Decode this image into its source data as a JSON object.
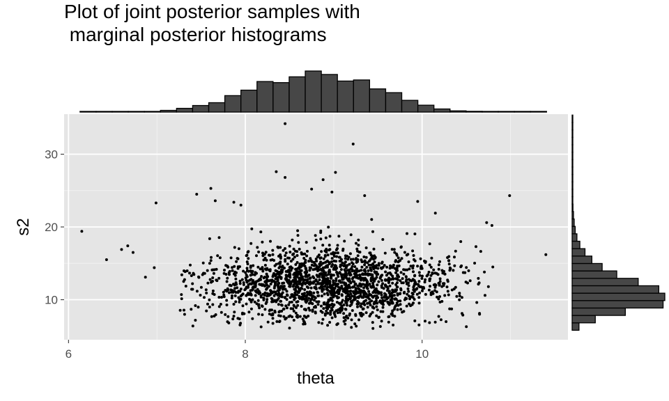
{
  "title": "Plot of joint posterior samples with\n marginal posterior histograms",
  "chart_data": {
    "type": "scatter",
    "title": "Plot of joint posterior samples with\n marginal posterior histograms",
    "xlabel": "theta",
    "ylabel": "s2",
    "xlim": [
      5.95,
      11.65
    ],
    "ylim": [
      4.5,
      35.5
    ],
    "x_ticks": [
      {
        "value": 6,
        "label": "6"
      },
      {
        "value": 8,
        "label": "8"
      },
      {
        "value": 10,
        "label": "10"
      }
    ],
    "y_ticks": [
      {
        "value": 10,
        "label": "10"
      },
      {
        "value": 20,
        "label": "20"
      },
      {
        "value": 30,
        "label": "30"
      }
    ],
    "x_minor_ticks": [
      7,
      9,
      11
    ],
    "y_minor_ticks": [
      15,
      25
    ],
    "grid": true,
    "panel_background": "#e5e5e5",
    "point_color": "#000000",
    "bar_fill": "#474747",
    "bar_outline": "#000000",
    "marginal_theta_histogram": {
      "bin_start": 6.13,
      "bin_width": 0.182,
      "counts": [
        1,
        1,
        1,
        2,
        4,
        11,
        24,
        42,
        60,
        105,
        140,
        195,
        188,
        225,
        262,
        240,
        198,
        205,
        148,
        124,
        75,
        44,
        20,
        8,
        5,
        2,
        1,
        1,
        1
      ]
    },
    "marginal_s2_histogram": {
      "bin_start": 5.8,
      "bin_width": 1.02,
      "counts": [
        40,
        135,
        310,
        530,
        540,
        505,
        385,
        260,
        175,
        115,
        75,
        45,
        28,
        18,
        12,
        8,
        5,
        3,
        2,
        2,
        1,
        1,
        1,
        1,
        1,
        1,
        1,
        1,
        1
      ]
    },
    "notable_points": [
      {
        "x": 6.15,
        "y": 19.4
      },
      {
        "x": 6.43,
        "y": 15.5
      },
      {
        "x": 6.6,
        "y": 16.9
      },
      {
        "x": 6.67,
        "y": 17.4
      },
      {
        "x": 6.73,
        "y": 16.5
      },
      {
        "x": 6.87,
        "y": 13.1
      },
      {
        "x": 6.97,
        "y": 14.4
      },
      {
        "x": 6.99,
        "y": 23.3
      },
      {
        "x": 7.45,
        "y": 24.5
      },
      {
        "x": 7.61,
        "y": 25.3
      },
      {
        "x": 7.66,
        "y": 23.6
      },
      {
        "x": 7.87,
        "y": 23.4
      },
      {
        "x": 7.95,
        "y": 23.0
      },
      {
        "x": 8.35,
        "y": 27.6
      },
      {
        "x": 8.45,
        "y": 26.8
      },
      {
        "x": 8.45,
        "y": 34.2
      },
      {
        "x": 8.75,
        "y": 25.2
      },
      {
        "x": 8.88,
        "y": 26.5
      },
      {
        "x": 8.98,
        "y": 24.8
      },
      {
        "x": 9.02,
        "y": 27.5
      },
      {
        "x": 9.22,
        "y": 31.4
      },
      {
        "x": 9.35,
        "y": 24.3
      },
      {
        "x": 9.95,
        "y": 23.5
      },
      {
        "x": 10.15,
        "y": 21.9
      },
      {
        "x": 10.73,
        "y": 20.6
      },
      {
        "x": 10.79,
        "y": 20.2
      },
      {
        "x": 10.99,
        "y": 24.3
      },
      {
        "x": 11.4,
        "y": 16.2
      },
      {
        "x": 10.8,
        "y": 14.5
      },
      {
        "x": 10.75,
        "y": 11.8
      },
      {
        "x": 10.65,
        "y": 8.0
      },
      {
        "x": 8.5,
        "y": 6.1
      },
      {
        "x": 9.2,
        "y": 6.2
      }
    ],
    "bulk_distribution": {
      "n_points": 1900,
      "theta_center": 8.95,
      "theta_sd": 0.72,
      "theta_range": [
        7.25,
        10.75
      ],
      "s2_center": 11.3,
      "s2_sd": 2.6,
      "s2_range": [
        6.0,
        22.0
      ]
    }
  }
}
